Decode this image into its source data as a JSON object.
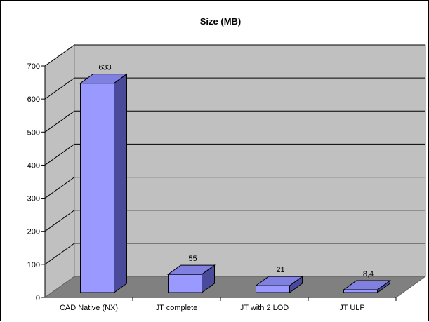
{
  "chart_data": {
    "type": "bar",
    "title": "Size (MB)",
    "xlabel": "",
    "ylabel": "",
    "categories": [
      "CAD Native (NX)",
      "JT complete",
      "JT with 2 LOD",
      "JT ULP"
    ],
    "values": [
      633,
      55,
      21,
      8.4
    ],
    "data_labels": [
      "633",
      "55",
      "21",
      "8,4"
    ],
    "ylim": [
      0,
      700
    ],
    "yticks": [
      0,
      100,
      200,
      300,
      400,
      500,
      600,
      700
    ],
    "grid": true,
    "legend": "none",
    "style": "3d-column",
    "colors": {
      "bar_front": "#9999ff",
      "bar_top": "#8080e0",
      "bar_side": "#4a4a9a",
      "wall": "#c0c0c0",
      "floor": "#808080",
      "gridline": "#000000"
    }
  }
}
